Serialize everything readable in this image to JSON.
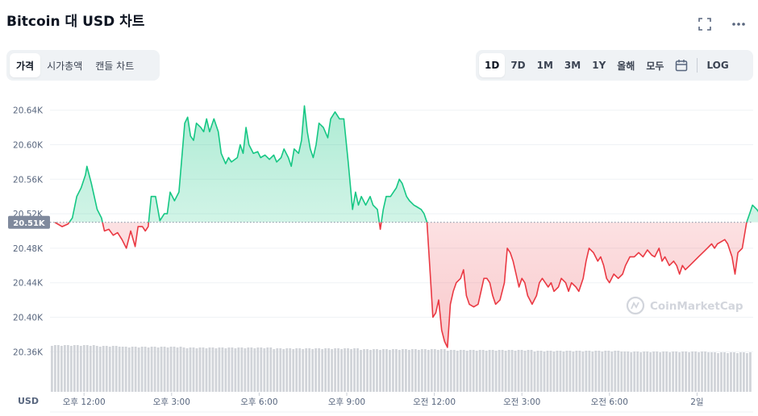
{
  "header": {
    "title": "Bitcoin 대 USD 차트",
    "fullscreen_icon": "fullscreen-icon",
    "more_icon": "more-horizontal-icon"
  },
  "view_tabs": [
    {
      "label": "가격",
      "active": true
    },
    {
      "label": "시가총액",
      "active": false
    },
    {
      "label": "캔들 차트",
      "active": false
    }
  ],
  "range_tabs": [
    {
      "label": "1D",
      "active": true
    },
    {
      "label": "7D",
      "active": false
    },
    {
      "label": "1M",
      "active": false
    },
    {
      "label": "3M",
      "active": false
    },
    {
      "label": "1Y",
      "active": false
    },
    {
      "label": "올해",
      "active": false
    },
    {
      "label": "모두",
      "active": false
    }
  ],
  "calendar_icon": "calendar-icon",
  "log_label": "LOG",
  "watermark": "CoinMarketCap",
  "colors": {
    "up": "#16c784",
    "down": "#ea3943",
    "grid": "#eff2f5",
    "volume": "#d1d4d9",
    "current_price_bg": "#808a9d"
  },
  "chart_data": {
    "type": "area",
    "currency_label": "USD",
    "baseline": 20510,
    "current_price_label": "20.51K",
    "ylim": [
      20340,
      20660
    ],
    "yticks": [
      {
        "value": 20640,
        "label": "20.64K"
      },
      {
        "value": 20600,
        "label": "20.60K"
      },
      {
        "value": 20560,
        "label": "20.56K"
      },
      {
        "value": 20520,
        "label": "20.52K"
      },
      {
        "value": 20480,
        "label": "20.48K"
      },
      {
        "value": 20440,
        "label": "20.44K"
      },
      {
        "value": 20400,
        "label": "20.40K"
      },
      {
        "value": 20360,
        "label": "20.36K"
      }
    ],
    "xlim": [
      0,
      25.7
    ],
    "xticks": [
      {
        "value": 1,
        "label": "오후 12:00"
      },
      {
        "value": 4,
        "label": "오후 3:00"
      },
      {
        "value": 7,
        "label": "오후 6:00"
      },
      {
        "value": 10,
        "label": "오후 9:00"
      },
      {
        "value": 13,
        "label": "오전 12:00"
      },
      {
        "value": 16,
        "label": "오전 3:00"
      },
      {
        "value": 19,
        "label": "오전 6:00"
      },
      {
        "value": 22,
        "label": "2일"
      }
    ],
    "price": [
      [
        0,
        20510
      ],
      [
        0.25,
        20505
      ],
      [
        0.45,
        20508
      ],
      [
        0.6,
        20515
      ],
      [
        0.75,
        20540
      ],
      [
        0.9,
        20550
      ],
      [
        1.05,
        20565
      ],
      [
        1.1,
        20575
      ],
      [
        1.25,
        20555
      ],
      [
        1.45,
        20525
      ],
      [
        1.6,
        20515
      ],
      [
        1.7,
        20500
      ],
      [
        1.85,
        20502
      ],
      [
        2.0,
        20495
      ],
      [
        2.15,
        20498
      ],
      [
        2.3,
        20490
      ],
      [
        2.45,
        20480
      ],
      [
        2.6,
        20500
      ],
      [
        2.75,
        20482
      ],
      [
        2.85,
        20505
      ],
      [
        3.0,
        20505
      ],
      [
        3.1,
        20500
      ],
      [
        3.2,
        20505
      ],
      [
        3.3,
        20540
      ],
      [
        3.45,
        20540
      ],
      [
        3.6,
        20512
      ],
      [
        3.75,
        20520
      ],
      [
        3.85,
        20520
      ],
      [
        3.95,
        20545
      ],
      [
        4.1,
        20535
      ],
      [
        4.25,
        20545
      ],
      [
        4.35,
        20585
      ],
      [
        4.45,
        20625
      ],
      [
        4.55,
        20632
      ],
      [
        4.65,
        20610
      ],
      [
        4.75,
        20605
      ],
      [
        4.85,
        20625
      ],
      [
        5.0,
        20620
      ],
      [
        5.1,
        20615
      ],
      [
        5.2,
        20630
      ],
      [
        5.3,
        20615
      ],
      [
        5.45,
        20630
      ],
      [
        5.6,
        20615
      ],
      [
        5.7,
        20590
      ],
      [
        5.85,
        20578
      ],
      [
        5.95,
        20585
      ],
      [
        6.05,
        20580
      ],
      [
        6.25,
        20585
      ],
      [
        6.35,
        20600
      ],
      [
        6.45,
        20590
      ],
      [
        6.55,
        20620
      ],
      [
        6.65,
        20600
      ],
      [
        6.8,
        20590
      ],
      [
        6.95,
        20592
      ],
      [
        7.05,
        20585
      ],
      [
        7.2,
        20588
      ],
      [
        7.35,
        20583
      ],
      [
        7.5,
        20588
      ],
      [
        7.6,
        20580
      ],
      [
        7.75,
        20585
      ],
      [
        7.85,
        20595
      ],
      [
        8.0,
        20585
      ],
      [
        8.1,
        20575
      ],
      [
        8.2,
        20595
      ],
      [
        8.35,
        20590
      ],
      [
        8.45,
        20605
      ],
      [
        8.55,
        20645
      ],
      [
        8.65,
        20615
      ],
      [
        8.75,
        20595
      ],
      [
        8.85,
        20585
      ],
      [
        8.95,
        20600
      ],
      [
        9.05,
        20625
      ],
      [
        9.2,
        20620
      ],
      [
        9.35,
        20608
      ],
      [
        9.45,
        20630
      ],
      [
        9.6,
        20638
      ],
      [
        9.75,
        20630
      ],
      [
        9.9,
        20630
      ],
      [
        10.05,
        20580
      ],
      [
        10.2,
        20525
      ],
      [
        10.3,
        20545
      ],
      [
        10.4,
        20530
      ],
      [
        10.5,
        20540
      ],
      [
        10.65,
        20530
      ],
      [
        10.8,
        20540
      ],
      [
        10.9,
        20530
      ],
      [
        11.05,
        20525
      ],
      [
        11.15,
        20502
      ],
      [
        11.25,
        20525
      ],
      [
        11.35,
        20540
      ],
      [
        11.5,
        20540
      ],
      [
        11.6,
        20545
      ],
      [
        11.7,
        20550
      ],
      [
        11.8,
        20560
      ],
      [
        11.9,
        20555
      ],
      [
        12.05,
        20540
      ],
      [
        12.15,
        20535
      ],
      [
        12.3,
        20530
      ],
      [
        12.4,
        20528
      ],
      [
        12.55,
        20525
      ],
      [
        12.65,
        20520
      ],
      [
        12.75,
        20510
      ],
      [
        12.85,
        20455
      ],
      [
        12.95,
        20400
      ],
      [
        13.05,
        20405
      ],
      [
        13.15,
        20420
      ],
      [
        13.25,
        20385
      ],
      [
        13.35,
        20372
      ],
      [
        13.45,
        20365
      ],
      [
        13.55,
        20415
      ],
      [
        13.65,
        20430
      ],
      [
        13.75,
        20440
      ],
      [
        13.9,
        20445
      ],
      [
        14.0,
        20455
      ],
      [
        14.1,
        20425
      ],
      [
        14.2,
        20415
      ],
      [
        14.35,
        20412
      ],
      [
        14.5,
        20415
      ],
      [
        14.6,
        20430
      ],
      [
        14.7,
        20445
      ],
      [
        14.8,
        20445
      ],
      [
        14.9,
        20440
      ],
      [
        15.0,
        20425
      ],
      [
        15.1,
        20415
      ],
      [
        15.25,
        20420
      ],
      [
        15.4,
        20440
      ],
      [
        15.5,
        20480
      ],
      [
        15.6,
        20475
      ],
      [
        15.7,
        20465
      ],
      [
        15.8,
        20450
      ],
      [
        15.9,
        20435
      ],
      [
        16.0,
        20445
      ],
      [
        16.1,
        20440
      ],
      [
        16.2,
        20425
      ],
      [
        16.35,
        20415
      ],
      [
        16.5,
        20425
      ],
      [
        16.6,
        20440
      ],
      [
        16.7,
        20445
      ],
      [
        16.8,
        20440
      ],
      [
        16.9,
        20435
      ],
      [
        17.0,
        20440
      ],
      [
        17.1,
        20430
      ],
      [
        17.25,
        20435
      ],
      [
        17.35,
        20445
      ],
      [
        17.5,
        20440
      ],
      [
        17.6,
        20430
      ],
      [
        17.7,
        20440
      ],
      [
        17.85,
        20435
      ],
      [
        17.95,
        20430
      ],
      [
        18.1,
        20445
      ],
      [
        18.2,
        20465
      ],
      [
        18.3,
        20480
      ],
      [
        18.45,
        20475
      ],
      [
        18.6,
        20465
      ],
      [
        18.7,
        20470
      ],
      [
        18.8,
        20460
      ],
      [
        18.9,
        20445
      ],
      [
        19.0,
        20440
      ],
      [
        19.15,
        20450
      ],
      [
        19.3,
        20445
      ],
      [
        19.45,
        20450
      ],
      [
        19.55,
        20460
      ],
      [
        19.7,
        20470
      ],
      [
        19.85,
        20470
      ],
      [
        20.0,
        20475
      ],
      [
        20.15,
        20470
      ],
      [
        20.3,
        20478
      ],
      [
        20.45,
        20472
      ],
      [
        20.55,
        20470
      ],
      [
        20.7,
        20480
      ],
      [
        20.8,
        20465
      ],
      [
        20.9,
        20470
      ],
      [
        21.05,
        20460
      ],
      [
        21.2,
        20465
      ],
      [
        21.3,
        20460
      ],
      [
        21.4,
        20450
      ],
      [
        21.5,
        20460
      ],
      [
        21.6,
        20455
      ],
      [
        21.75,
        20460
      ],
      [
        21.9,
        20465
      ],
      [
        22.05,
        20470
      ],
      [
        22.2,
        20475
      ],
      [
        22.35,
        20480
      ],
      [
        22.5,
        20485
      ],
      [
        22.6,
        20480
      ],
      [
        22.7,
        20485
      ],
      [
        22.85,
        20488
      ],
      [
        22.95,
        20490
      ],
      [
        23.05,
        20485
      ],
      [
        23.2,
        20470
      ],
      [
        23.3,
        20450
      ],
      [
        23.4,
        20475
      ],
      [
        23.55,
        20480
      ],
      [
        23.7,
        20510
      ],
      [
        23.8,
        20520
      ],
      [
        23.9,
        20530
      ],
      [
        24.05,
        20525
      ],
      [
        24.15,
        20520
      ],
      [
        24.3,
        20510
      ],
      [
        24.45,
        20505
      ]
    ]
  }
}
